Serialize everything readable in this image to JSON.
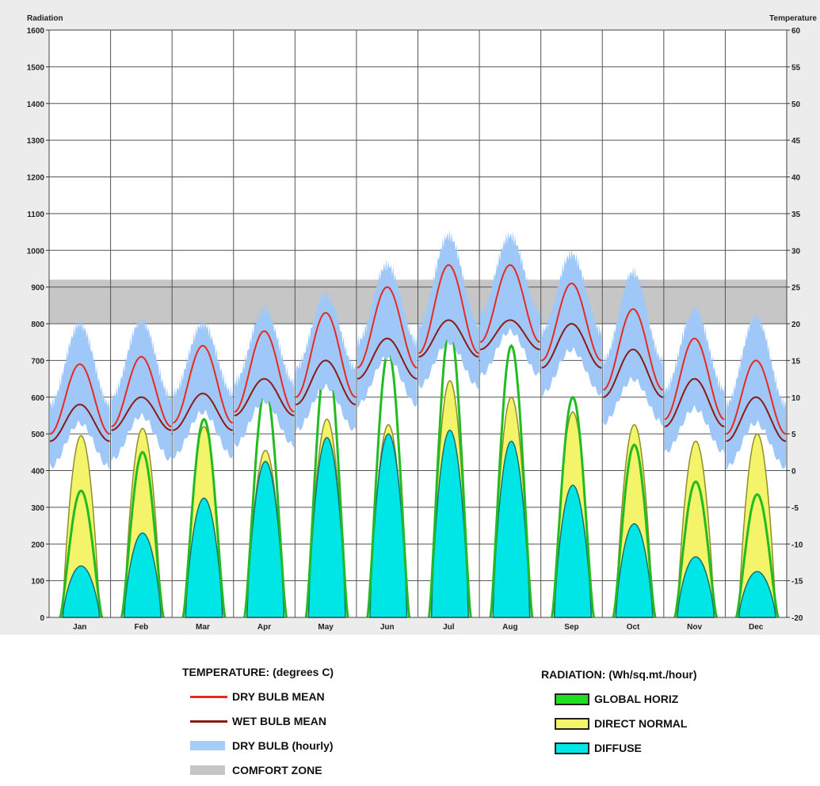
{
  "chart_data": {
    "type": "line",
    "left_axis_label": "Radiation",
    "right_axis_label": "Temperature",
    "left_ylim": [
      0,
      1600
    ],
    "right_ylim": [
      -20,
      60
    ],
    "left_ticks": [
      0,
      100,
      200,
      300,
      400,
      500,
      600,
      700,
      800,
      900,
      1000,
      1100,
      1200,
      1300,
      1400,
      1500,
      1600
    ],
    "right_ticks": [
      -20,
      -15,
      -10,
      -5,
      0,
      5,
      10,
      15,
      20,
      25,
      30,
      35,
      40,
      45,
      50,
      55,
      60
    ],
    "categories": [
      "Jan",
      "Feb",
      "Mar",
      "Apr",
      "May",
      "Jun",
      "Jul",
      "Aug",
      "Sep",
      "Oct",
      "Nov",
      "Dec"
    ],
    "grid": true,
    "comfort_zone": [
      20,
      26
    ],
    "series": [
      {
        "name": "DRY BULB MEAN",
        "color": "#e8291e",
        "low": [
          5,
          6,
          6.5,
          8,
          10,
          14,
          16,
          17.5,
          15,
          11,
          7,
          5
        ],
        "high": [
          14.5,
          15.5,
          17,
          19,
          21.5,
          25,
          28,
          28,
          25.5,
          22,
          18,
          15
        ]
      },
      {
        "name": "WET BULB MEAN",
        "color": "#8b1a14",
        "low": [
          4,
          5.5,
          5.5,
          7.5,
          9,
          12.5,
          15.5,
          16.5,
          14,
          10,
          6,
          4
        ],
        "high": [
          9,
          10,
          10.5,
          12.5,
          15,
          18,
          20.5,
          20.5,
          20,
          16.5,
          12.5,
          10
        ]
      },
      {
        "name": "DRY BULB (hourly)",
        "color": "#9fc8f8",
        "band_low": [
          1,
          2,
          2.5,
          4,
          6,
          9.5,
          12,
          13.5,
          11,
          7,
          3,
          1
        ],
        "band_high": [
          20,
          20.5,
          20,
          22,
          24,
          28,
          32,
          32,
          29.5,
          27,
          22,
          21
        ]
      },
      {
        "name": "GLOBAL HORIZ",
        "color": "#22bb22",
        "values": [
          345,
          450,
          540,
          625,
          725,
          725,
          790,
          740,
          600,
          470,
          370,
          335
        ]
      },
      {
        "name": "DIRECT NORMAL",
        "color": "#f4f46a",
        "values": [
          495,
          515,
          520,
          455,
          540,
          525,
          645,
          600,
          560,
          525,
          480,
          500
        ]
      },
      {
        "name": "DIFFUSE",
        "color": "#00e6e6",
        "values": [
          140,
          230,
          325,
          425,
          490,
          500,
          510,
          480,
          360,
          255,
          165,
          125
        ]
      }
    ]
  },
  "legend": {
    "temperature_title": "TEMPERATURE: (degrees C)",
    "radiation_title": "RADIATION: (Wh/sq.mt./hour)",
    "temperature_items": [
      {
        "label": "DRY BULB MEAN",
        "color": "#e8291e"
      },
      {
        "label": "WET BULB MEAN",
        "color": "#8b1a14"
      },
      {
        "label": "DRY BULB (hourly)",
        "color": "#a6cdf8"
      },
      {
        "label": "COMFORT ZONE",
        "color": "#c6c6c6"
      }
    ],
    "radiation_items": [
      {
        "label": "GLOBAL HORIZ",
        "color": "#22dd22"
      },
      {
        "label": "DIRECT NORMAL",
        "color": "#f4f46a"
      },
      {
        "label": "DIFFUSE",
        "color": "#00e6e6"
      }
    ]
  }
}
